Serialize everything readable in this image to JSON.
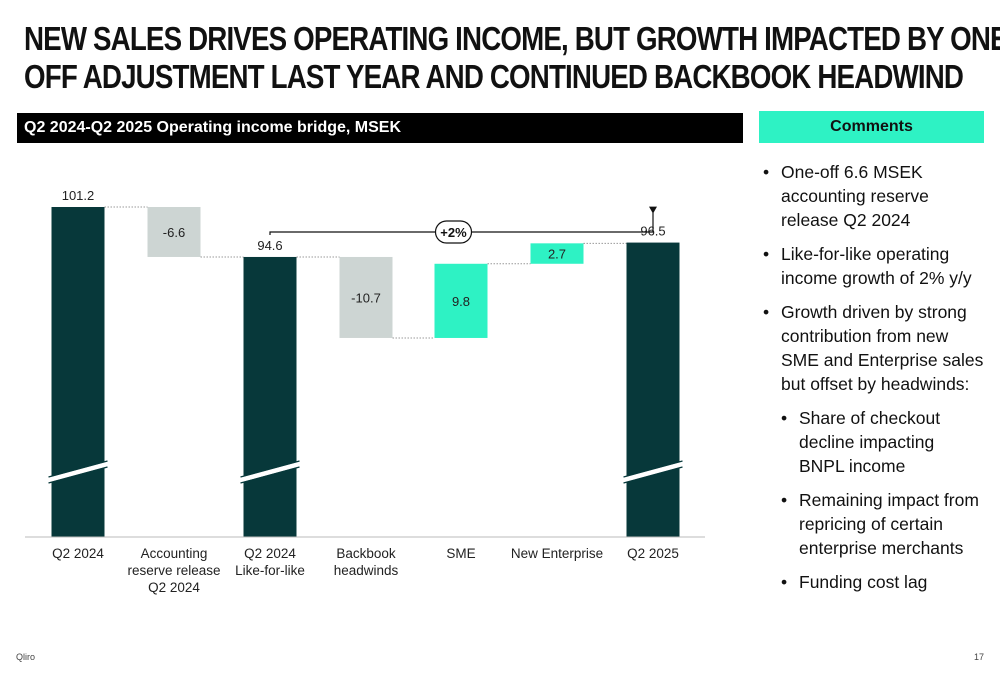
{
  "slide": {
    "title_line1": "NEW SALES DRIVES OPERATING INCOME, BUT GROWTH IMPACTED BY ONE",
    "title_line2": "OFF ADJUSTMENT LAST YEAR AND CONTINUED BACKBOOK HEADWIND",
    "chart_header": "Q2 2024-Q2 2025 Operating income bridge, MSEK",
    "comments_header": "Comments",
    "footer_brand": "Qliro",
    "page_number": "17"
  },
  "comments": [
    {
      "text": "One-off 6.6 MSEK accounting reserve release Q2 2024",
      "level": 1
    },
    {
      "text": "Like-for-like operating income growth of 2% y/y",
      "level": 1
    },
    {
      "text": "Growth driven by strong contribution from new SME and Enterprise sales but offset by headwinds:",
      "level": 1
    },
    {
      "text": "Share of checkout decline impacting BNPL income",
      "level": 2
    },
    {
      "text": "Remaining impact from repricing of certain enterprise merchants",
      "level": 2
    },
    {
      "text": "Funding cost lag",
      "level": 2
    }
  ],
  "colors": {
    "total": "#07383a",
    "negative": "#cdd5d3",
    "positive": "#2ef2c4",
    "connector": "#999999",
    "header_bg": "#000000",
    "comments_bg": "#2ef2c4"
  },
  "chart_data": {
    "type": "bar",
    "subtype": "waterfall",
    "title": "Q2 2024-Q2 2025 Operating income bridge, MSEK",
    "unit": "MSEK",
    "axis_break": true,
    "ylim": [
      70,
      105
    ],
    "steps": [
      {
        "label": [
          "Q2 2024"
        ],
        "kind": "total",
        "value": 101.2,
        "data_label": "101.2"
      },
      {
        "label": [
          "Accounting",
          "reserve release",
          "Q2 2024"
        ],
        "kind": "delta",
        "value": -6.6,
        "data_label": "-6.6"
      },
      {
        "label": [
          "Q2 2024",
          "Like-for-like"
        ],
        "kind": "total",
        "value": 94.6,
        "data_label": "94.6"
      },
      {
        "label": [
          "Backbook",
          "headwinds"
        ],
        "kind": "delta",
        "value": -10.7,
        "data_label": "-10.7"
      },
      {
        "label": [
          "SME"
        ],
        "kind": "delta",
        "value": 9.8,
        "data_label": "9.8"
      },
      {
        "label": [
          "New Enterprise"
        ],
        "kind": "delta",
        "value": 2.7,
        "data_label": "2.7"
      },
      {
        "label": [
          "Q2 2025"
        ],
        "kind": "total",
        "value": 96.5,
        "data_label": "96.5"
      }
    ],
    "annotation": {
      "text": "+2%",
      "from_index": 2,
      "to_index": 6
    }
  }
}
